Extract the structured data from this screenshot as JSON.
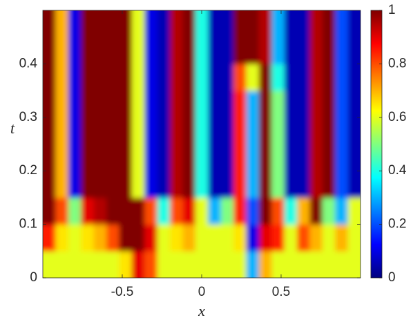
{
  "chart_data": {
    "type": "heatmap",
    "colormap": "jet",
    "xlabel": "x",
    "ylabel": "t",
    "xlim": [
      -1,
      1
    ],
    "ylim": [
      0,
      0.5
    ],
    "xticks": [
      -0.5,
      0,
      0.5
    ],
    "yticks": [
      0,
      0.1,
      0.2,
      0.3,
      0.4
    ],
    "clim": [
      0,
      1
    ],
    "cticks": [
      0,
      0.2,
      0.4,
      0.6,
      0.8,
      1
    ],
    "x": [
      -0.96,
      -0.88,
      -0.8,
      -0.72,
      -0.64,
      -0.56,
      -0.48,
      -0.4,
      -0.32,
      -0.24,
      -0.16,
      -0.08,
      0,
      0.08,
      0.16,
      0.24,
      0.32,
      0.4,
      0.48,
      0.56,
      0.64,
      0.72,
      0.8,
      0.88,
      0.96
    ],
    "y": [
      0.025,
      0.075,
      0.125,
      0.175,
      0.225,
      0.275,
      0.325,
      0.375,
      0.425,
      0.475
    ],
    "z": [
      [
        0.6,
        0.6,
        0.6,
        0.6,
        0.6,
        0.6,
        0.65,
        0.9,
        0.8,
        0.6,
        0.6,
        0.6,
        0.6,
        0.6,
        0.6,
        0.6,
        0.3,
        0.7,
        0.6,
        0.6,
        0.6,
        0.6,
        0.6,
        0.6,
        0.6
      ],
      [
        0.85,
        0.65,
        0.6,
        0.65,
        0.7,
        0.8,
        1,
        1,
        0.9,
        0.6,
        0.65,
        0.7,
        0.6,
        0.6,
        0.6,
        0.65,
        0.1,
        0.9,
        0.85,
        0.6,
        0.8,
        0.7,
        0.6,
        0.7,
        0.6
      ],
      [
        1,
        0.8,
        0.5,
        0.9,
        0.95,
        1,
        1,
        1,
        0.8,
        0.4,
        0.8,
        0.9,
        0.6,
        0.3,
        0.5,
        0.85,
        0.2,
        1,
        0.8,
        0.4,
        0.7,
        1,
        0.5,
        0.3,
        0.6
      ],
      [
        1,
        0.7,
        0.1,
        1,
        1,
        1,
        1,
        0.6,
        0.1,
        0.05,
        0.95,
        1,
        0.4,
        0.05,
        0.05,
        0.85,
        0.3,
        1,
        0.5,
        0.05,
        0.05,
        0.95,
        1,
        0.2,
        0.05
      ],
      [
        1,
        0.7,
        0.1,
        1,
        1,
        1,
        1,
        0.6,
        0.1,
        0.05,
        0.95,
        1,
        0.4,
        0.05,
        0.05,
        0.85,
        0.3,
        1,
        0.5,
        0.05,
        0.05,
        0.95,
        1,
        0.2,
        0.05
      ],
      [
        1,
        0.7,
        0.1,
        1,
        1,
        1,
        1,
        0.6,
        0.1,
        0.05,
        0.95,
        1,
        0.4,
        0.05,
        0.05,
        0.85,
        0.3,
        1,
        0.5,
        0.05,
        0.05,
        0.95,
        1,
        0.2,
        0.05
      ],
      [
        1,
        0.7,
        0.1,
        1,
        1,
        1,
        1,
        0.6,
        0.1,
        0.05,
        0.95,
        1,
        0.4,
        0.05,
        0.05,
        0.85,
        0.3,
        1,
        0.5,
        0.05,
        0.05,
        0.95,
        1,
        0.2,
        0.05
      ],
      [
        1,
        0.7,
        0.1,
        1,
        1,
        1,
        1,
        0.6,
        0.1,
        0.05,
        0.95,
        1,
        0.4,
        0.05,
        0.05,
        0.8,
        0.6,
        1,
        0.4,
        0.05,
        0.05,
        0.95,
        1,
        0.2,
        0.05
      ],
      [
        1,
        0.7,
        0.1,
        1,
        1,
        1,
        1,
        0.6,
        0.1,
        0.05,
        0.95,
        1,
        0.4,
        0.05,
        0.05,
        1,
        1,
        0.95,
        0.3,
        0.05,
        0.05,
        0.95,
        1,
        0.2,
        0.05
      ],
      [
        1,
        0.7,
        0.1,
        1,
        1,
        1,
        1,
        0.6,
        0.1,
        0.05,
        0.95,
        1,
        0.4,
        0.05,
        0.05,
        1,
        1,
        0.95,
        0.3,
        0.05,
        0.05,
        0.95,
        1,
        0.2,
        0.05
      ]
    ]
  }
}
